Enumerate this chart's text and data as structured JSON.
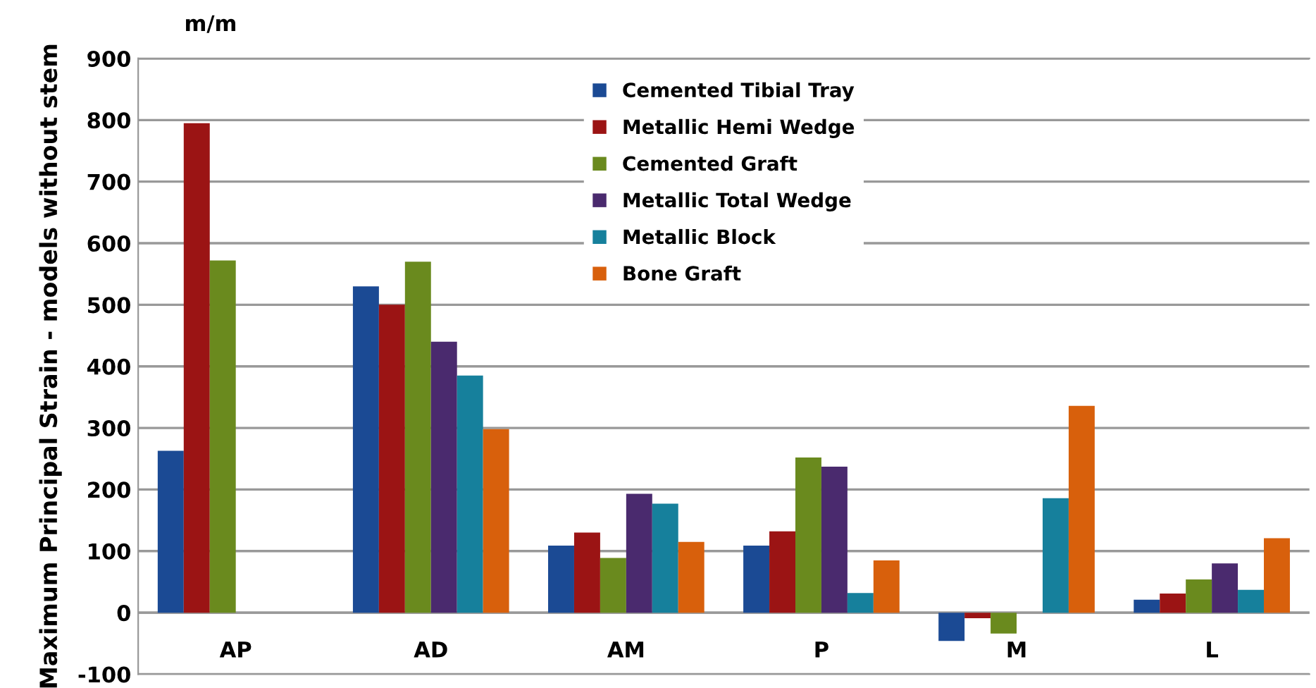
{
  "chart_data": {
    "type": "bar",
    "ylabel": "Maximum Principal Strain - models without stem",
    "annotations": [
      "m/m"
    ],
    "categories": [
      "AP",
      "AD",
      "AM",
      "P",
      "M",
      "L"
    ],
    "series": [
      {
        "name": "Cemented Tibial Tray",
        "color": "#1b4a94",
        "values": [
          263,
          530,
          109,
          109,
          -46,
          21
        ]
      },
      {
        "name": "Metallic Hemi Wedge",
        "color": "#9b1414",
        "values": [
          795,
          500,
          130,
          132,
          -9,
          31
        ]
      },
      {
        "name": "Cemented Graft",
        "color": "#6a8a1e",
        "values": [
          572,
          570,
          89,
          252,
          -34,
          54
        ]
      },
      {
        "name": "Metallic Total Wedge",
        "color": "#4a2a6e",
        "values": [
          null,
          440,
          193,
          237,
          null,
          80
        ]
      },
      {
        "name": "Metallic Block",
        "color": "#16809c",
        "values": [
          null,
          385,
          177,
          32,
          186,
          37
        ]
      },
      {
        "name": "Bone Graft",
        "color": "#d8600c",
        "values": [
          null,
          298,
          115,
          85,
          336,
          121
        ]
      }
    ],
    "ylim": [
      -100,
      900
    ],
    "yticks": [
      {
        "value": -100,
        "label": "-100"
      },
      0,
      100,
      200,
      300,
      400,
      500,
      600,
      700,
      800,
      900
    ],
    "grid": "y",
    "legend": "top"
  }
}
